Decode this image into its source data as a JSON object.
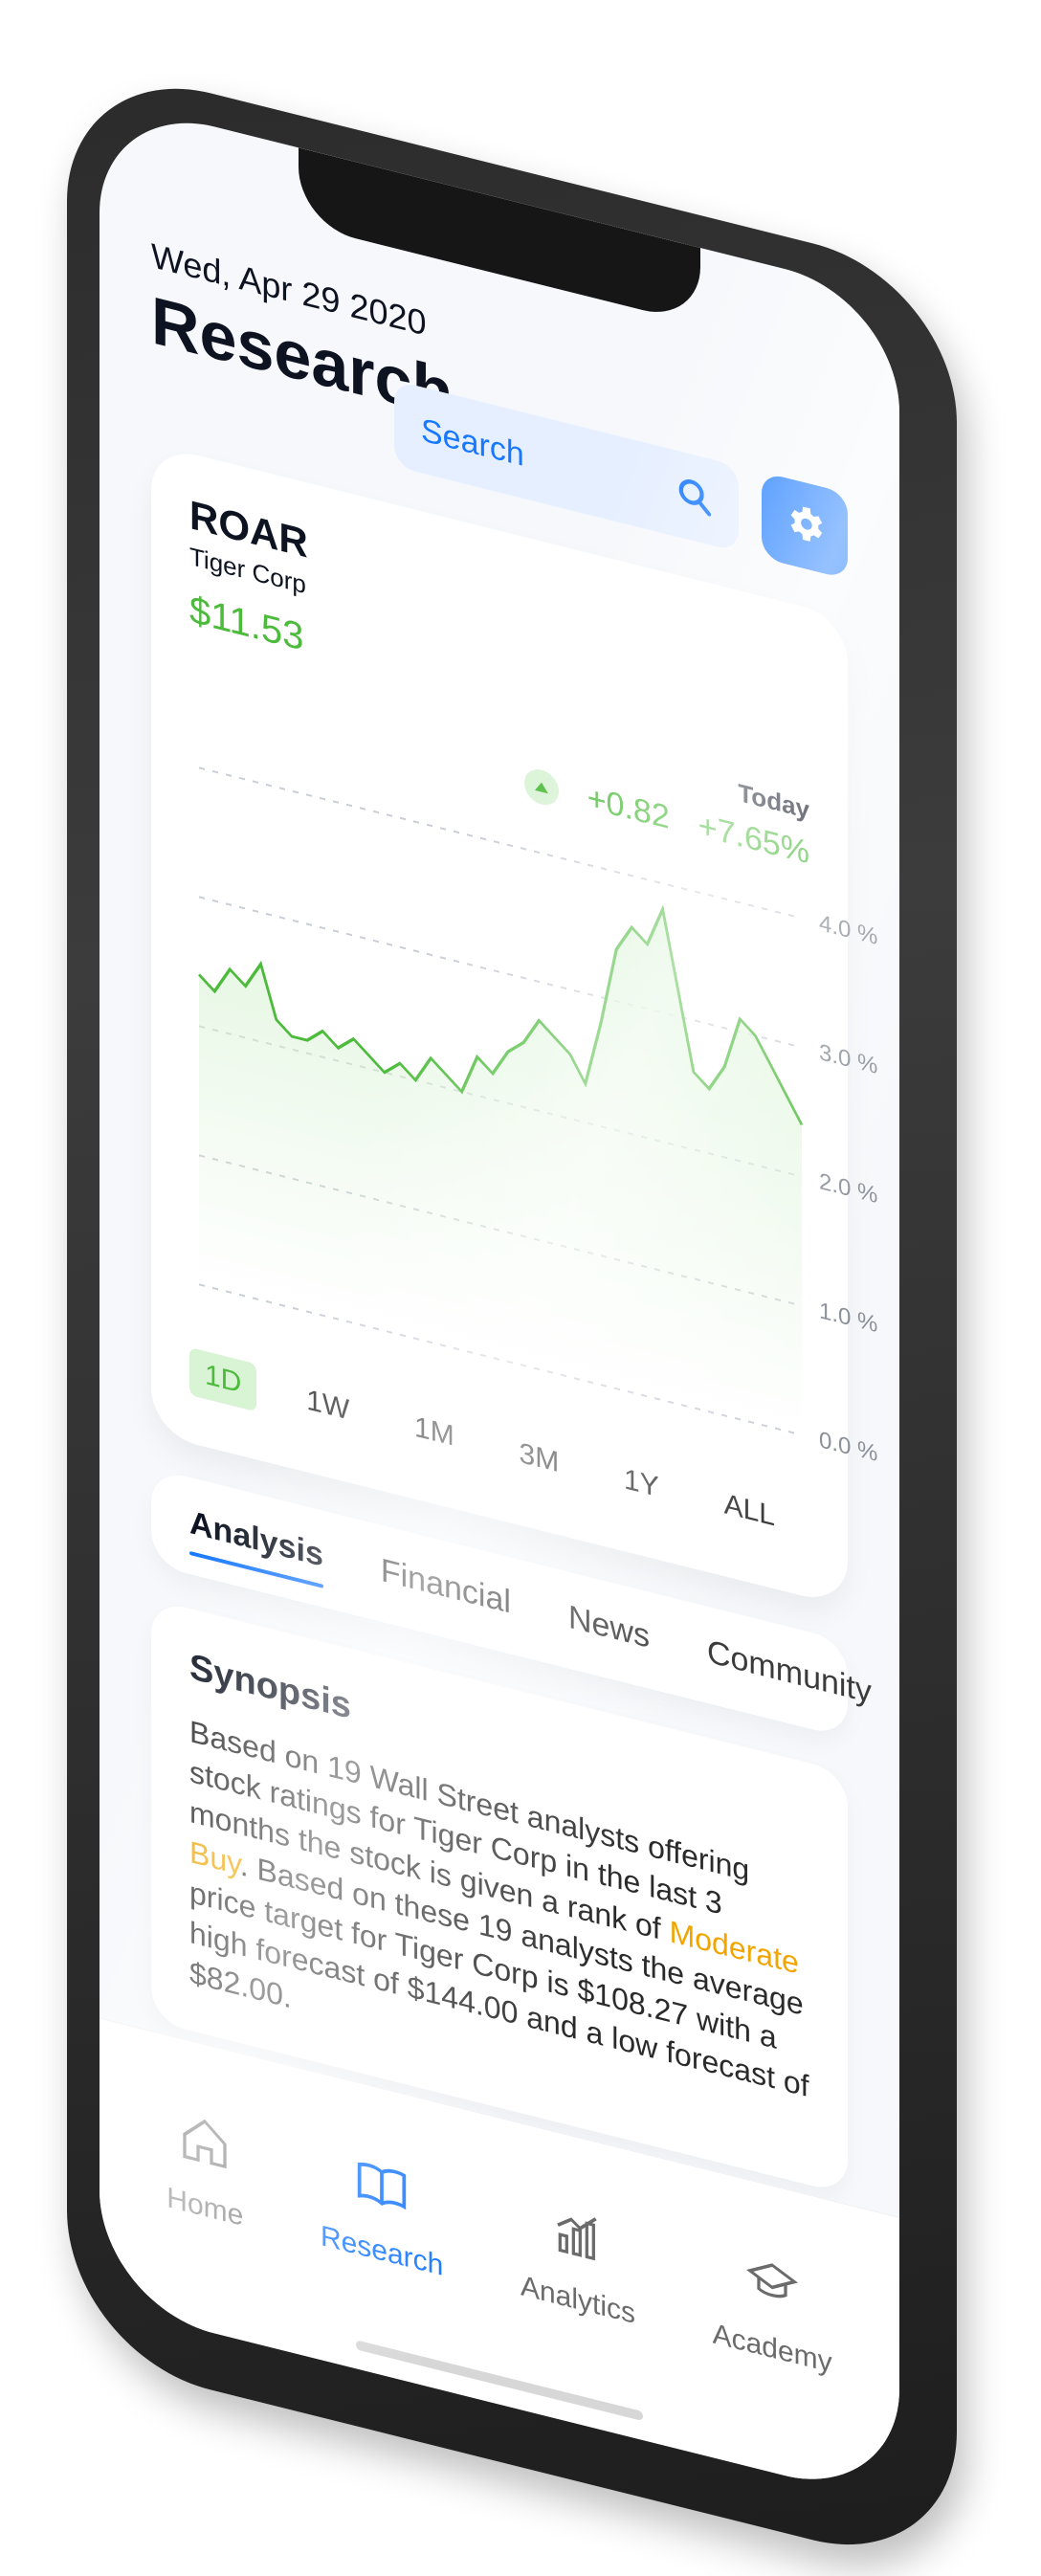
{
  "header": {
    "date": "Wed, Apr 29 2020",
    "title": "Research"
  },
  "search": {
    "placeholder": "Search"
  },
  "stock": {
    "ticker": "ROAR",
    "company": "Tiger Corp",
    "price": "$11.53",
    "today_label": "Today",
    "change_abs": "+0.82",
    "change_pct": "+7.65%"
  },
  "chart_data": {
    "type": "area",
    "ylabel": "",
    "ylim": [
      0,
      4
    ],
    "yticks": [
      "0.0 %",
      "1.0 %",
      "2.0 %",
      "3.0 %",
      "4.0 %"
    ],
    "x": [
      0,
      1,
      2,
      3,
      4,
      5,
      6,
      7,
      8,
      9,
      10,
      11,
      12,
      13,
      14,
      15,
      16,
      17,
      18,
      19,
      20,
      21,
      22,
      23,
      24,
      25,
      26,
      27,
      28,
      29,
      30,
      31,
      32,
      33,
      34,
      35,
      36,
      37,
      38,
      39
    ],
    "values": [
      2.4,
      2.3,
      2.5,
      2.4,
      2.6,
      2.2,
      2.1,
      2.1,
      2.2,
      2.1,
      2.2,
      2.1,
      2.0,
      2.1,
      2.0,
      2.2,
      2.1,
      2.0,
      2.3,
      2.2,
      2.4,
      2.5,
      2.7,
      2.6,
      2.5,
      2.3,
      2.8,
      3.4,
      3.6,
      3.5,
      3.8,
      3.2,
      2.6,
      2.5,
      2.7,
      3.1,
      3.0,
      2.8,
      2.6,
      2.4
    ],
    "colors": {
      "line": "#4cbb3b",
      "fill": "#d9f3d5",
      "grid": "#c9ced6"
    }
  },
  "ranges": [
    {
      "label": "1D",
      "active": true
    },
    {
      "label": "1W",
      "active": false
    },
    {
      "label": "1M",
      "active": false
    },
    {
      "label": "3M",
      "active": false
    },
    {
      "label": "1Y",
      "active": false
    },
    {
      "label": "ALL",
      "active": false
    }
  ],
  "tabs": [
    {
      "label": "Analysis",
      "active": true
    },
    {
      "label": "Financial",
      "active": false
    },
    {
      "label": "News",
      "active": false
    },
    {
      "label": "Community",
      "active": false
    }
  ],
  "synopsis": {
    "title": "Synopsis",
    "text_before": "Based on 19 Wall Street analysts offering stock ratings for Tiger Corp in the last 3 months the stock is given a rank of ",
    "highlight": "Moderate Buy",
    "text_after": ". Based on these 19 analysts the average price target for Tiger Corp is $108.27 with a high forecast of $144.00 and a low forecast of $82.00."
  },
  "nav": [
    {
      "label": "Home",
      "icon": "home-icon",
      "active": false
    },
    {
      "label": "Research",
      "icon": "book-icon",
      "active": true
    },
    {
      "label": "Analytics",
      "icon": "chart-icon",
      "active": false
    },
    {
      "label": "Academy",
      "icon": "graduation-icon",
      "active": false
    }
  ],
  "colors": {
    "accent": "#1677ff",
    "positive": "#4cbb3b",
    "highlight": "#f0a500"
  }
}
